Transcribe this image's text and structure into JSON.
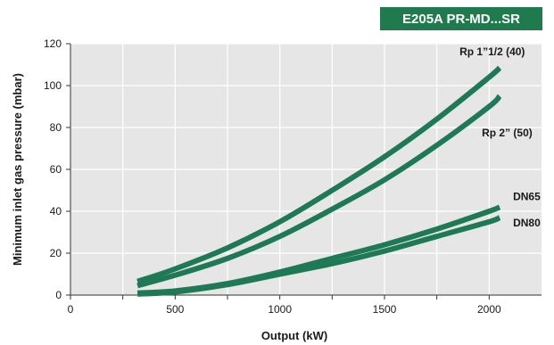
{
  "badge": {
    "text": "E205A PR-MD...SR",
    "color": "#1f7a4d"
  },
  "chart_data": {
    "type": "line",
    "title": "",
    "xlabel": "Output (kW)",
    "ylabel": "Minimum inlet gas pressure (mbar)",
    "xlim": [
      0,
      2250
    ],
    "ylim": [
      0,
      120
    ],
    "xticks": [
      0,
      500,
      1000,
      1500,
      2000
    ],
    "yticks": [
      0,
      20,
      40,
      60,
      80,
      100,
      120
    ],
    "xtick_labels": [
      "0",
      "500",
      "1000",
      "1500",
      "2000"
    ],
    "ytick_labels": [
      "0",
      "20",
      "40",
      "60",
      "80",
      "100",
      "120"
    ],
    "grid": true,
    "line_color": "#1e7a56",
    "series": [
      {
        "name": "Rp 1”1/2 (40)",
        "x": [
          320,
          500,
          750,
          1000,
          1250,
          1500,
          1750,
          2000,
          2050
        ],
        "y": [
          6.5,
          12.5,
          22.5,
          35,
          50,
          66,
          84,
          104,
          108.5
        ]
      },
      {
        "name": "Rp 2” (50)",
        "x": [
          320,
          500,
          750,
          1000,
          1250,
          1500,
          1750,
          2000,
          2050
        ],
        "y": [
          4.5,
          9.5,
          17.5,
          28,
          41,
          55,
          71.5,
          90,
          95
        ]
      },
      {
        "name": "DN65",
        "x": [
          320,
          500,
          750,
          1000,
          1250,
          1500,
          1750,
          2000,
          2050
        ],
        "y": [
          1,
          2,
          5.5,
          11,
          17.5,
          24,
          31.5,
          40,
          42
        ]
      },
      {
        "name": "DN80",
        "x": [
          320,
          500,
          750,
          1000,
          1250,
          1500,
          1750,
          2000,
          2050
        ],
        "y": [
          0.5,
          1.5,
          5,
          10,
          15,
          21,
          28,
          35,
          37
        ]
      }
    ]
  }
}
